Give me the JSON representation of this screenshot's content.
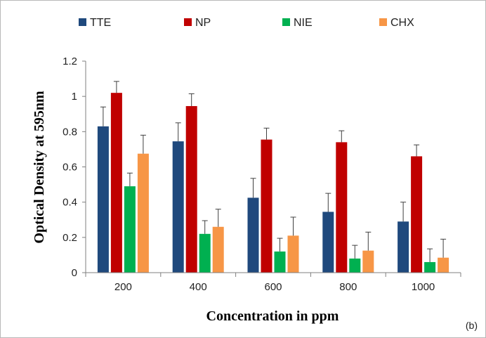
{
  "chart_data": {
    "type": "bar",
    "title": "",
    "xlabel": "Concentration in ppm",
    "ylabel": "Optical Density at 595nm",
    "panel_label": "(b)",
    "categories": [
      "200",
      "400",
      "600",
      "800",
      "1000"
    ],
    "ylim": [
      0,
      1.2
    ],
    "yticks": [
      0,
      0.2,
      0.4,
      0.6,
      0.8,
      1,
      1.2
    ],
    "grid": false,
    "legend_position": "top",
    "series": [
      {
        "name": "TTE",
        "color": "#1f497d",
        "values": [
          0.83,
          0.745,
          0.425,
          0.345,
          0.29
        ],
        "errors": [
          0.11,
          0.105,
          0.11,
          0.105,
          0.11
        ]
      },
      {
        "name": "NP",
        "color": "#c00000",
        "values": [
          1.02,
          0.945,
          0.755,
          0.74,
          0.66
        ],
        "errors": [
          0.065,
          0.07,
          0.065,
          0.065,
          0.065
        ]
      },
      {
        "name": "NIE",
        "color": "#00b050",
        "values": [
          0.49,
          0.22,
          0.12,
          0.08,
          0.06
        ],
        "errors": [
          0.075,
          0.075,
          0.075,
          0.075,
          0.075
        ]
      },
      {
        "name": "CHX",
        "color": "#f79646",
        "values": [
          0.675,
          0.26,
          0.21,
          0.125,
          0.085
        ],
        "errors": [
          0.105,
          0.1,
          0.105,
          0.105,
          0.105
        ]
      }
    ]
  }
}
